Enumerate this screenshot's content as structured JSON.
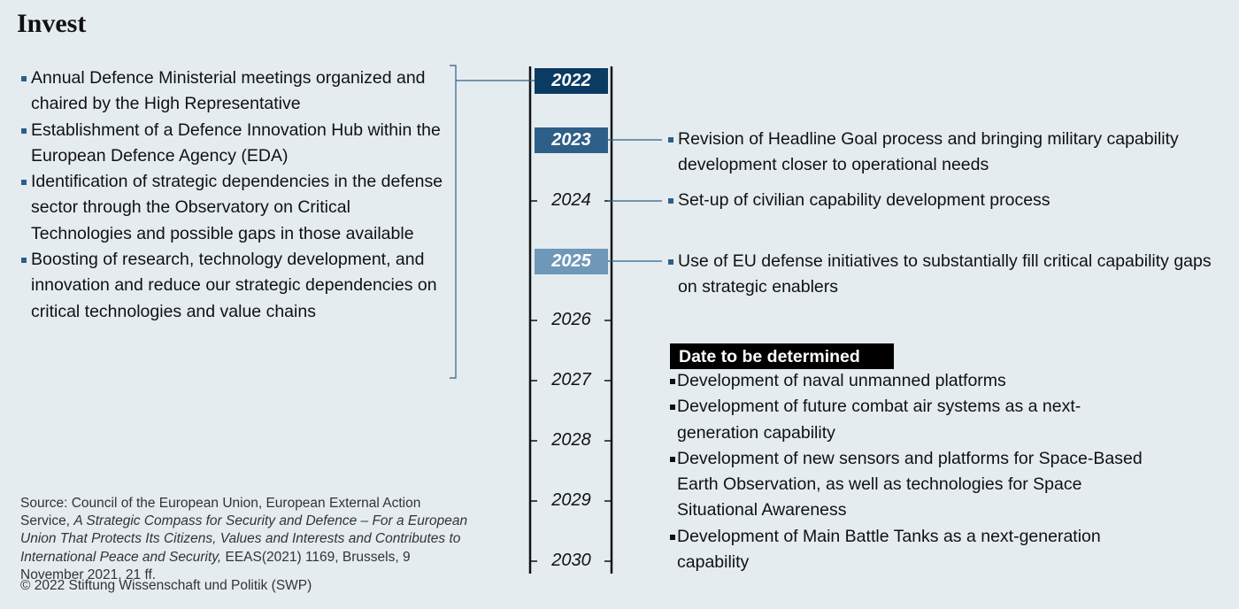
{
  "title": "Invest",
  "left_items": [
    "Annual Defence Ministerial meetings organized and chaired by the High Representative",
    "Establishment of a Defence Innovation Hub within the European Defence Agency (EDA)",
    "Identification of strategic dependencies in the defense sector through the Observatory on Critical Technologies and possible gaps in those available",
    "Boosting of research, technology development, and innovation and reduce our strategic dependencies on critical technologies and value chains"
  ],
  "years": [
    "2022",
    "2023",
    "2024",
    "2025",
    "2026",
    "2027",
    "2028",
    "2029",
    "2030"
  ],
  "right_items": [
    "Revision of Headline Goal process and bringing military capability development closer to operational needs",
    "Set-up of civilian capability development process",
    "Use of EU defense initiatives to substantially fill critical capability gaps on strategic enablers"
  ],
  "tbd": {
    "heading": "Date to be determined",
    "items": [
      "Development of naval unmanned platforms",
      "Development of future combat air systems as a next-generation capability",
      "Development of new sensors and platforms for Space-Based Earth Observation, as well as technologies for Space Situational Awareness",
      "Development of Main Battle Tanks as a next-generation capability"
    ]
  },
  "source": {
    "prefix": "Source: Council of the European Union, European External Action Service,",
    "title": "A Strategic Compass for Security and Defence – For a European Union That Protects Its Citizens, Values and Interests and Contributes to International Peace and Security,",
    "suffix": "EEAS(2021) 1169, Brussels, 9 November 2021, 21 ff."
  },
  "copyright": "© 2022 Stiftung Wissenschaft und Politik (SWP)"
}
